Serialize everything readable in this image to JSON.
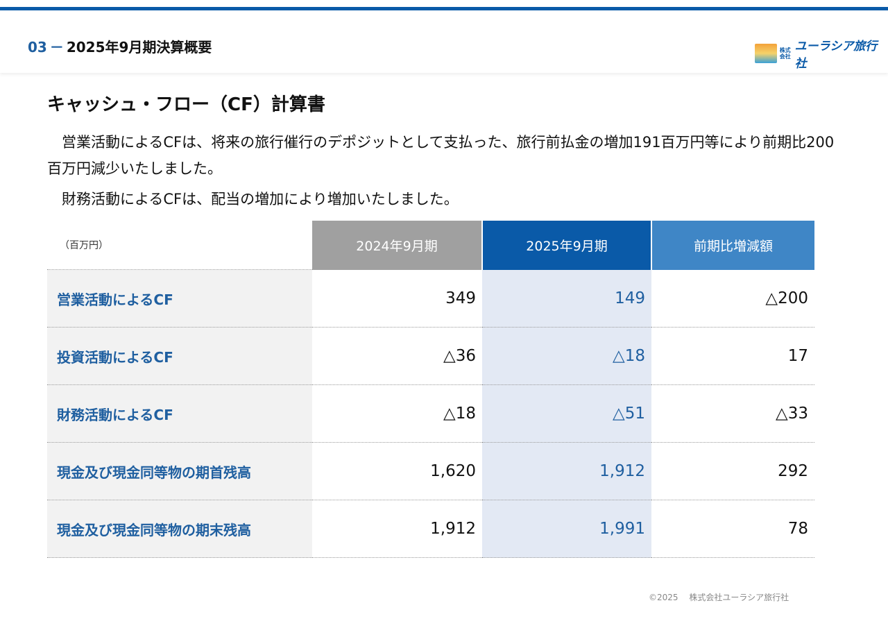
{
  "header": {
    "section_number": "03",
    "section_dash": "－",
    "section_title": "2025年9月期決算概要",
    "logo_kabushiki": "株式会社",
    "logo_name": "ユーラシア旅行社"
  },
  "title": "キャッシュ・フロー（CF）計算書",
  "paragraphs": [
    "営業活動によるCFは、将来の旅行催行のデポジットとして支払った、旅行前払金の増加191百万円等により前期比200百万円減少いたしました。",
    "財務活動によるCFは、配当の増加により増加いたしました。"
  ],
  "table": {
    "unit": "（百万円）",
    "columns": [
      "2024年9月期",
      "2025年9月期",
      "前期比増減額"
    ],
    "rows": [
      {
        "label": "営業活動によるCF",
        "values": [
          "349",
          "149",
          "△200"
        ]
      },
      {
        "label": "投資活動によるCF",
        "values": [
          "△36",
          "△18",
          "17"
        ]
      },
      {
        "label": "財務活動によるCF",
        "values": [
          "△18",
          "△51",
          "△33"
        ]
      },
      {
        "label": "現金及び現金同等物の期首残高",
        "values": [
          "1,620",
          "1,912",
          "292"
        ]
      },
      {
        "label": "現金及び現金同等物の期末残高",
        "values": [
          "1,912",
          "1,991",
          "78"
        ]
      }
    ]
  },
  "footer": "©2025　 株式会社ユーラシア旅行社"
}
